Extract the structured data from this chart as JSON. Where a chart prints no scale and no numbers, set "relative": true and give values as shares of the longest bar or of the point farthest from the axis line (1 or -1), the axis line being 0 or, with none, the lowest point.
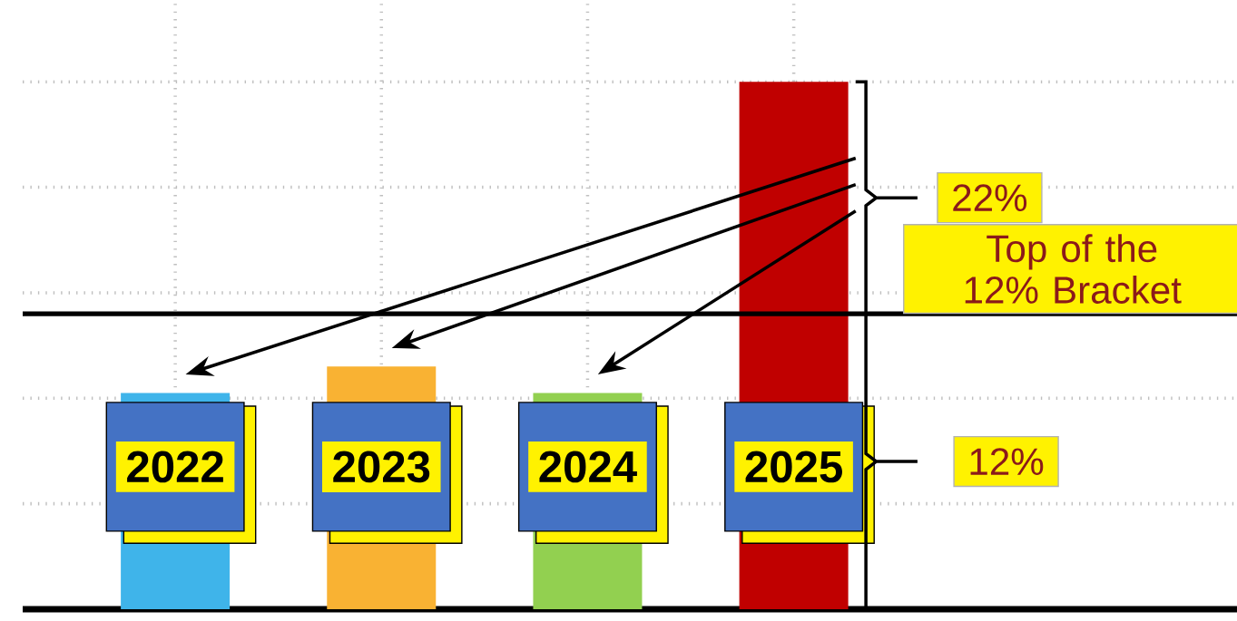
{
  "chart_data": {
    "type": "bar",
    "categories": [
      "2022",
      "2023",
      "2024",
      "2025"
    ],
    "values": [
      0.41,
      0.46,
      0.41,
      1
    ],
    "colors": [
      "#3fb4ea",
      "#f9b233",
      "#92d050",
      "#c00000"
    ],
    "relative": true,
    "grid": true,
    "ref_lines": [
      {
        "axis": "y",
        "value": 0.56,
        "label": "Top of the 12% Bracket",
        "color": "#000000"
      }
    ],
    "annotations": [
      "22%",
      "12%"
    ]
  }
}
